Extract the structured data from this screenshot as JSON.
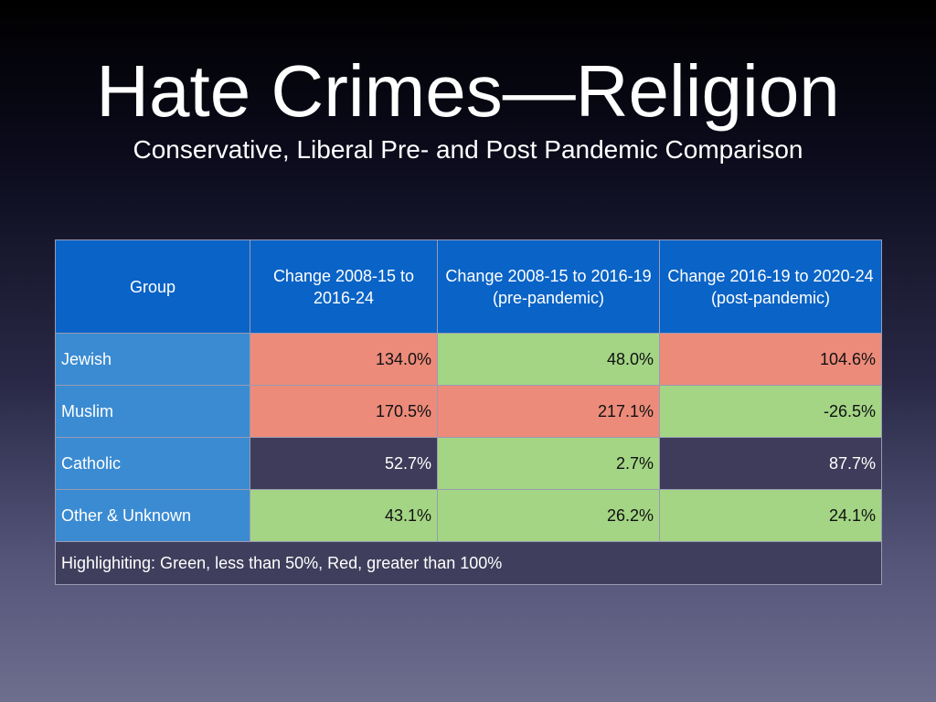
{
  "slide": {
    "title": "Hate Crimes—Religion",
    "subtitle": "Conservative, Liberal Pre- and Post Pandemic Comparison"
  },
  "colors": {
    "header": "#0a63c6",
    "group_cell": "#3b8bd2",
    "red": "#ec8b7a",
    "green": "#a3d585",
    "neutral": "#3e3c5a"
  },
  "table": {
    "headers": [
      "Group",
      "Change 2008-15 to 2016-24",
      "Change 2008-15 to 2016-19 (pre-pandemic)",
      "Change 2016-19 to 2020-24 (post-pandemic)"
    ],
    "rows": [
      {
        "group": "Jewish",
        "values": [
          {
            "text": "134.0%",
            "highlight": "red"
          },
          {
            "text": "48.0%",
            "highlight": "green"
          },
          {
            "text": "104.6%",
            "highlight": "red"
          }
        ]
      },
      {
        "group": "Muslim",
        "values": [
          {
            "text": "170.5%",
            "highlight": "red"
          },
          {
            "text": "217.1%",
            "highlight": "red"
          },
          {
            "text": "-26.5%",
            "highlight": "green"
          }
        ]
      },
      {
        "group": "Catholic",
        "values": [
          {
            "text": "52.7%",
            "highlight": "none"
          },
          {
            "text": "2.7%",
            "highlight": "green"
          },
          {
            "text": "87.7%",
            "highlight": "none"
          }
        ]
      },
      {
        "group": "Other & Unknown",
        "values": [
          {
            "text": "43.1%",
            "highlight": "green"
          },
          {
            "text": "26.2%",
            "highlight": "green"
          },
          {
            "text": "24.1%",
            "highlight": "green"
          }
        ]
      }
    ],
    "note": "Highlighiting: Green, less than 50%, Red, greater than 100%"
  }
}
